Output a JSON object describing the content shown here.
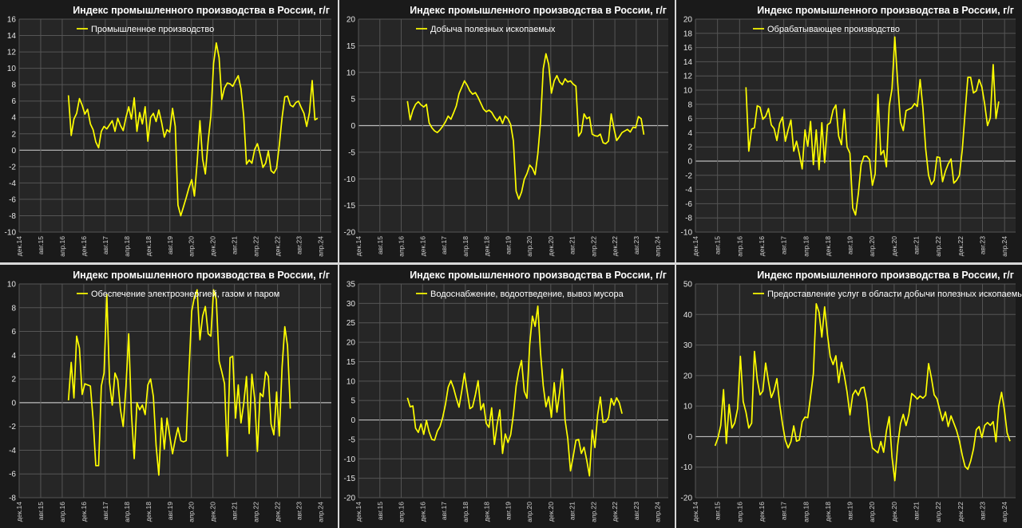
{
  "colors": {
    "line": "#ffff00",
    "plot_bg": "#262626",
    "panel_bg": "#1a1a1a",
    "grid": "#555555",
    "zero": "#bdbdbd",
    "text": "#ffffff"
  },
  "chart_data": [
    {
      "type": "line",
      "title": "Индекс промышленного производства в России, г/г",
      "legend": "Промышленное производство",
      "legend_position": "top-left",
      "ylim": [
        -10,
        16
      ],
      "yticks": [
        -10,
        -8,
        -6,
        -4,
        -2,
        0,
        2,
        4,
        6,
        8,
        10,
        12,
        14,
        16
      ],
      "xticks": [
        "дек.14",
        "авг.15",
        "апр.16",
        "дек.16",
        "авг.17",
        "апр.18",
        "дек.18",
        "авг.19",
        "апр.20",
        "дек.20",
        "авг.21",
        "апр.22",
        "дек.22",
        "авг.23",
        "апр.24"
      ],
      "x_start": "2014-12",
      "x_end": "2024-06",
      "series": [
        {
          "x_start": "2016-06",
          "values": [
            6.7,
            1.8,
            3.8,
            4.5,
            6.3,
            5.5,
            4.4,
            5.0,
            3.2,
            2.5,
            1.0,
            0.3,
            2.3,
            2.9,
            2.6,
            3.1,
            3.6,
            2.3,
            3.9,
            3.0,
            2.4,
            4.0,
            5.3,
            3.8,
            6.4,
            2.3,
            4.6,
            3.2,
            5.3,
            1.1,
            4.0,
            4.5,
            3.5,
            4.9,
            3.4,
            1.6,
            2.5,
            2.2,
            5.1,
            2.9,
            -6.7,
            -8.0,
            -6.9,
            -5.8,
            -4.6,
            -3.6,
            -5.6,
            -1.5,
            3.6,
            -1.1,
            -2.9,
            1.1,
            4.2,
            10.6,
            13.1,
            11.3,
            6.2,
            7.6,
            8.2,
            8.1,
            7.8,
            8.5,
            9.1,
            7.5,
            4.2,
            -1.7,
            -1.2,
            -1.6,
            0.1,
            0.8,
            -0.5,
            -2.1,
            -1.6,
            -0.1,
            -2.5,
            -2.8,
            -2.2,
            0.6,
            4.0,
            6.5,
            6.6,
            5.5,
            5.3,
            5.8,
            6.0,
            5.2,
            4.5,
            2.9,
            4.6,
            8.5,
            3.7,
            3.9
          ]
        }
      ]
    },
    {
      "type": "line",
      "title": "Индекс промышленного производства в России, г/г",
      "legend": "Добыча полезных ископаемых",
      "legend_position": "top-left",
      "ylim": [
        -20,
        20
      ],
      "yticks": [
        -20,
        -15,
        -10,
        -5,
        0,
        5,
        10,
        15,
        20
      ],
      "xticks": [
        "дек.14",
        "авг.15",
        "апр.16",
        "дек.16",
        "авг.17",
        "апр.18",
        "дек.18",
        "авг.19",
        "апр.20",
        "дек.20",
        "авг.21",
        "апр.22",
        "дек.22",
        "авг.23",
        "апр.24"
      ],
      "x_start": "2014-12",
      "x_end": "2024-06",
      "series": [
        {
          "x_start": "2016-06",
          "values": [
            4.6,
            1.1,
            2.9,
            4.0,
            4.5,
            3.9,
            3.5,
            4.0,
            0.5,
            -0.4,
            -1.0,
            -1.3,
            -0.8,
            -0.1,
            0.7,
            1.8,
            1.2,
            2.4,
            3.7,
            6.0,
            7.2,
            8.4,
            7.6,
            6.5,
            5.9,
            6.2,
            5.3,
            4.2,
            3.1,
            2.6,
            2.9,
            2.5,
            1.6,
            0.9,
            1.7,
            0.4,
            1.8,
            1.3,
            0.2,
            -2.9,
            -12.3,
            -13.8,
            -12.5,
            -10.1,
            -9.0,
            -7.4,
            -8.0,
            -9.2,
            -5.3,
            0.7,
            10.7,
            13.5,
            11.5,
            6.1,
            8.4,
            9.4,
            8.2,
            7.7,
            8.8,
            8.2,
            8.4,
            7.8,
            7.4,
            -2.0,
            -1.2,
            2.2,
            1.3,
            1.6,
            -1.6,
            -1.9,
            -2.0,
            -1.6,
            -3.2,
            -3.4,
            -2.9,
            2.2,
            -0.5,
            -2.8,
            -2.1,
            -1.3,
            -1.0,
            -0.7,
            -1.2,
            -0.3,
            -0.4,
            1.7,
            1.3,
            -1.7
          ]
        }
      ]
    },
    {
      "type": "line",
      "title": "Индекс промышленного производства в России, г/г",
      "legend": "Обрабатывающее производство",
      "legend_position": "top-left",
      "ylim": [
        -10,
        20
      ],
      "yticks": [
        -10,
        -8,
        -6,
        -4,
        -2,
        0,
        2,
        4,
        6,
        8,
        10,
        12,
        14,
        16,
        18,
        20
      ],
      "xticks": [
        "дек.14",
        "авг.15",
        "апр.16",
        "дек.16",
        "авг.17",
        "апр.18",
        "дек.18",
        "авг.19",
        "апр.20",
        "дек.20",
        "авг.21",
        "апр.22",
        "дек.22",
        "авг.23",
        "апр.24"
      ],
      "x_start": "2014-12",
      "x_end": "2024-06",
      "series": [
        {
          "x_start": "2016-06",
          "values": [
            10.4,
            1.4,
            4.5,
            4.7,
            7.8,
            7.6,
            5.9,
            6.3,
            7.4,
            5.1,
            4.6,
            2.9,
            5.3,
            6.2,
            2.8,
            4.4,
            5.8,
            1.4,
            2.8,
            1.0,
            -1.1,
            4.4,
            2.1,
            5.6,
            -0.5,
            4.4,
            -1.2,
            5.4,
            -0.2,
            5.1,
            5.4,
            7.2,
            7.9,
            3.5,
            2.3,
            7.3,
            2.0,
            1.1,
            -6.6,
            -7.6,
            -4.6,
            -0.5,
            0.7,
            0.7,
            0.2,
            -3.4,
            -1.8,
            9.4,
            0.9,
            1.5,
            -0.8,
            7.8,
            10.2,
            17.5,
            11.0,
            5.5,
            4.3,
            7.1,
            7.3,
            7.5,
            8.1,
            7.7,
            11.5,
            7.5,
            1.7,
            -2.0,
            -3.3,
            -2.7,
            0.6,
            0.5,
            -2.9,
            -1.4,
            -0.4,
            0.3,
            -3.1,
            -2.7,
            -2.0,
            1.6,
            6.8,
            11.8,
            11.8,
            9.6,
            9.9,
            11.5,
            10.4,
            8.0,
            5.0,
            6.1,
            13.6,
            6.0,
            8.4
          ]
        }
      ]
    },
    {
      "type": "line",
      "title": "Индекс промышленного производства в России, г/г",
      "legend": "Обеспечение электроэнергией, газом и паром",
      "legend_position": "top-left",
      "ylim": [
        -8,
        10
      ],
      "yticks": [
        -8,
        -6,
        -4,
        -2,
        0,
        2,
        4,
        6,
        8,
        10
      ],
      "xticks": [
        "дек.14",
        "авг.15",
        "апр.16",
        "дек.16",
        "авг.17",
        "апр.18",
        "дек.18",
        "авг.19",
        "апр.20",
        "дек.20",
        "авг.21",
        "апр.22",
        "дек.22",
        "авг.23",
        "апр.24"
      ],
      "x_start": "2014-12",
      "x_end": "2024-06",
      "series": [
        {
          "x_start": "2016-06",
          "values": [
            0.2,
            3.4,
            0.4,
            5.6,
            4.6,
            0.7,
            1.6,
            1.5,
            1.4,
            -1.4,
            -5.3,
            -5.3,
            1.4,
            2.5,
            9.1,
            1.7,
            -0.2,
            2.5,
            1.9,
            -0.6,
            -2.0,
            1.4,
            5.8,
            -0.9,
            -4.7,
            0.0,
            -0.6,
            -0.2,
            -1.0,
            1.5,
            2.0,
            0.5,
            -3.6,
            -6.1,
            -1.3,
            -3.9,
            -1.3,
            -2.8,
            -4.3,
            -3.1,
            -2.1,
            -3.2,
            -3.3,
            -3.2,
            2.5,
            7.7,
            8.9,
            9.5,
            5.3,
            7.3,
            8.1,
            5.8,
            5.6,
            9.5,
            8.7,
            3.5,
            2.6,
            1.6,
            -4.5,
            3.8,
            3.9,
            -1.3,
            1.5,
            -1.7,
            -0.1,
            2.2,
            -2.6,
            2.4,
            0.3,
            -4.1,
            0.8,
            0.5,
            2.6,
            2.2,
            -1.8,
            -2.7,
            0.9,
            -2.8,
            3.0,
            6.4,
            4.8,
            -0.5
          ]
        }
      ]
    },
    {
      "type": "line",
      "title": "Индекс промышленного производства в России, г/г",
      "legend": "Водоснабжение, водоотведение, вывоз мусора",
      "legend_position": "top-left",
      "ylim": [
        -20,
        35
      ],
      "yticks": [
        -20,
        -15,
        -10,
        -5,
        0,
        5,
        10,
        15,
        20,
        25,
        30,
        35
      ],
      "xticks": [
        "дек.14",
        "авг.15",
        "апр.16",
        "дек.16",
        "авг.17",
        "апр.18",
        "дек.18",
        "авг.19",
        "апр.20",
        "дек.20",
        "авг.21",
        "апр.22",
        "дек.22",
        "авг.23",
        "апр.24"
      ],
      "x_start": "2014-12",
      "x_end": "2024-06",
      "series": [
        {
          "x_start": "2016-06",
          "values": [
            5.7,
            3.4,
            3.6,
            -2.1,
            -3.2,
            -1.0,
            -3.7,
            -0.1,
            -3.1,
            -5.0,
            -5.2,
            -2.9,
            -1.7,
            0.7,
            4.0,
            8.4,
            10.1,
            8.2,
            5.6,
            3.3,
            7.4,
            12.0,
            7.4,
            2.9,
            3.4,
            6.5,
            10.1,
            2.6,
            4.2,
            -0.9,
            -1.9,
            3.1,
            -6.3,
            -1.2,
            2.6,
            -8.6,
            -3.6,
            -5.8,
            -3.8,
            1.4,
            8.7,
            12.7,
            15.3,
            7.4,
            5.6,
            19.3,
            26.7,
            24.1,
            29.3,
            17.2,
            8.8,
            3.4,
            6.0,
            0.7,
            9.6,
            2.0,
            7.1,
            13.1,
            0.0,
            -4.8,
            -13.1,
            -9.4,
            -5.2,
            -5.0,
            -8.6,
            -7.0,
            -10.4,
            -14.4,
            -2.6,
            -7.1,
            1.3,
            5.9,
            -0.6,
            -0.5,
            0.6,
            5.5,
            3.8,
            5.7,
            4.4,
            1.6
          ]
        }
      ]
    },
    {
      "type": "line",
      "title": "Индекс промышленного производства в России, г/г",
      "legend": "Предоставление услуг в области добычи полезных ископаемых",
      "legend_position": "top-left",
      "ylim": [
        -20,
        50
      ],
      "yticks": [
        -20,
        -10,
        0,
        10,
        20,
        30,
        40,
        50
      ],
      "xticks": [
        "дек.14",
        "авг.15",
        "апр.16",
        "дек.16",
        "авг.17",
        "апр.18",
        "дек.18",
        "авг.19",
        "апр.20",
        "дек.20",
        "авг.21",
        "апр.22",
        "дек.22",
        "авг.23",
        "апр.24"
      ],
      "x_start": "2014-12",
      "x_end": "2024-06",
      "series": [
        {
          "x_start": "2015-07",
          "values": [
            -3.0,
            -0.5,
            3.6,
            15.4,
            -2.2,
            10.5,
            2.8,
            4.5,
            9.1,
            26.3,
            11.5,
            8.0,
            2.8,
            4.4,
            27.9,
            18.7,
            13.7,
            14.9,
            24.1,
            18.0,
            12.8,
            15.1,
            19.0,
            10.6,
            4.2,
            -1.2,
            -3.7,
            -1.6,
            3.5,
            -1.5,
            -1.1,
            4.9,
            6.4,
            6.2,
            13.2,
            20.6,
            43.5,
            40.7,
            32.6,
            42.5,
            33.5,
            26.2,
            23.6,
            26.5,
            17.7,
            24.3,
            20.1,
            14.6,
            7.1,
            13.7,
            15.2,
            13.5,
            15.9,
            16.2,
            11.5,
            2.0,
            -3.7,
            -4.5,
            -5.3,
            -1.6,
            -5.1,
            1.9,
            6.5,
            -6.7,
            -14.4,
            -2.8,
            4.2,
            7.3,
            3.6,
            7.3,
            14.1,
            13.3,
            12.3,
            13.3,
            12.6,
            13.5,
            23.9,
            19.3,
            13.7,
            12.4,
            8.7,
            5.2,
            8.1,
            3.3,
            6.8,
            4.4,
            2.0,
            -1.4,
            -6.1,
            -9.8,
            -10.7,
            -8.0,
            -4.1,
            2.3,
            3.3,
            -0.3,
            3.7,
            4.6,
            3.7,
            4.9,
            -1.7,
            9.9,
            14.5,
            8.9,
            1.2,
            -1.5
          ]
        }
      ]
    }
  ]
}
